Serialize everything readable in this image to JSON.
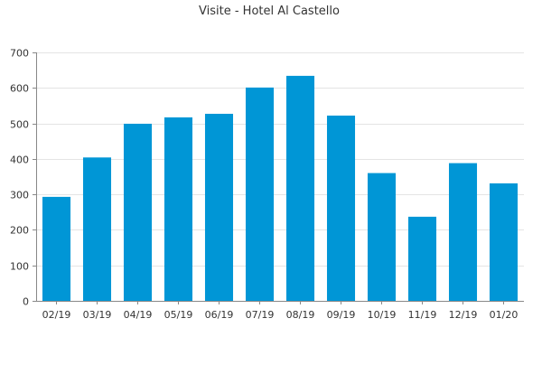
{
  "chart_data": {
    "type": "bar",
    "title": "Visite - Hotel Al Castello",
    "xlabel": "",
    "ylabel": "",
    "categories": [
      "02/19",
      "03/19",
      "04/19",
      "05/19",
      "06/19",
      "07/19",
      "08/19",
      "09/19",
      "10/19",
      "11/19",
      "12/19",
      "01/20"
    ],
    "series": [
      {
        "values": [
          293,
          404,
          499,
          517,
          527,
          601,
          634,
          522,
          360,
          237,
          388,
          331
        ]
      }
    ],
    "ylim": [
      0,
      700
    ],
    "yticks": [
      0,
      100,
      200,
      300,
      400,
      500,
      600,
      700
    ],
    "grid": true,
    "legend": "none",
    "colors": {
      "bar": "#0096d6",
      "grid": "#e4e4e4",
      "axis": "#888888",
      "text": "#333333"
    }
  }
}
